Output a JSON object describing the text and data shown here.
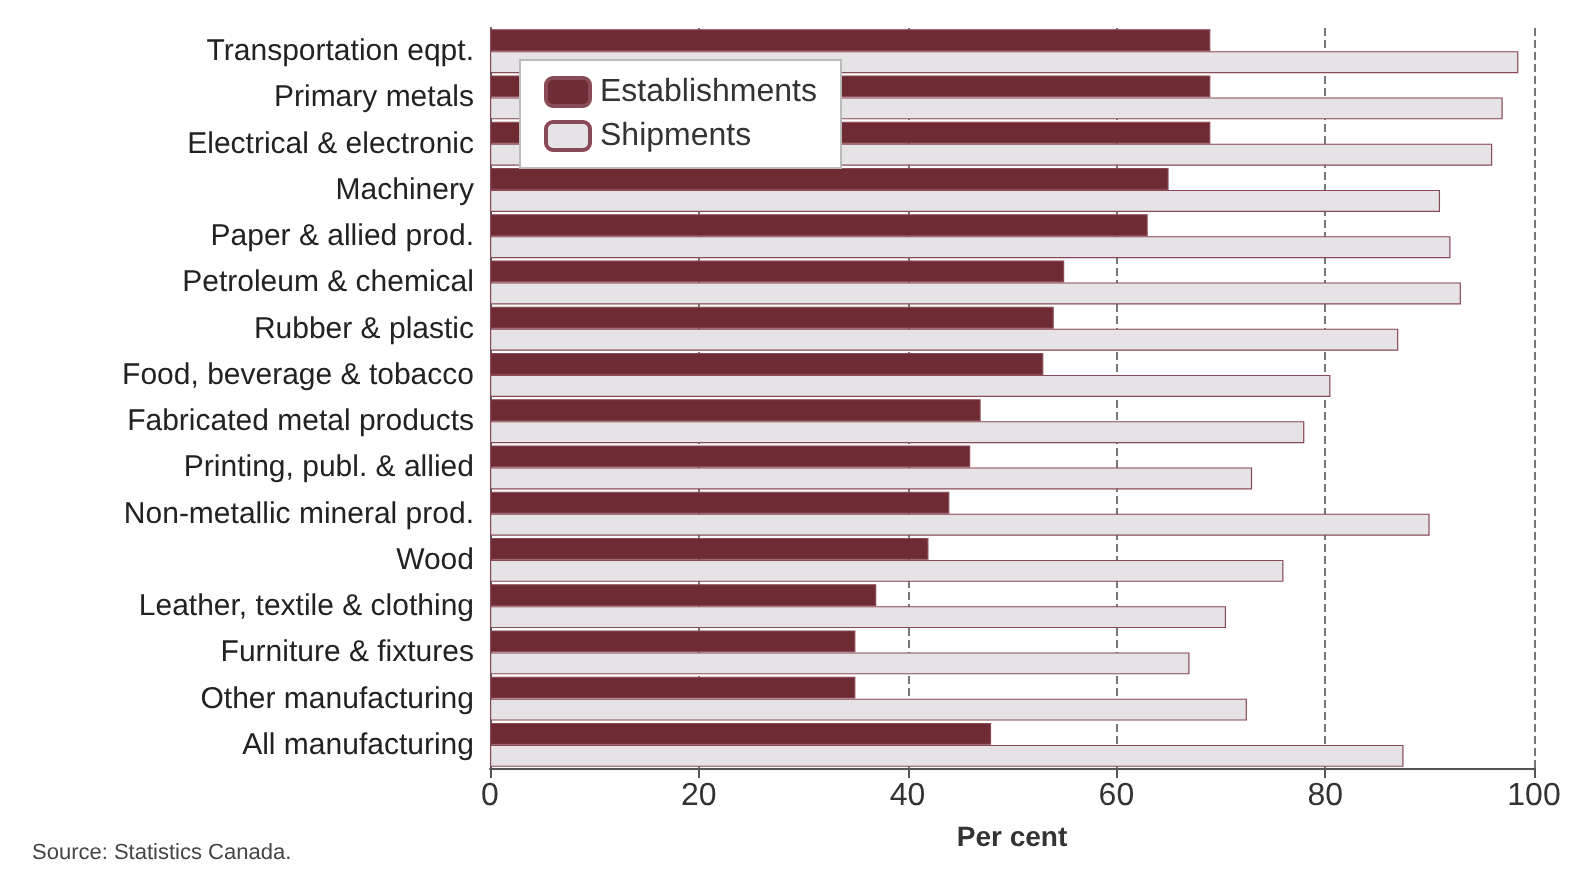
{
  "chart_data": {
    "type": "bar",
    "orientation": "horizontal",
    "xlabel": "Per cent",
    "annotations": [
      "Source: Statistics Canada."
    ],
    "categories": [
      "Transportation eqpt.",
      "Primary metals",
      "Electrical & electronic",
      "Machinery",
      "Paper & allied prod.",
      "Petroleum & chemical",
      "Rubber & plastic",
      "Food, beverage & tobacco",
      "Fabricated metal products",
      "Printing, publ. & allied",
      "Non-metallic mineral prod.",
      "Wood",
      "Leather, textile & clothing",
      "Furniture & fixtures",
      "Other manufacturing",
      "All manufacturing"
    ],
    "series": [
      {
        "name": "Establishments",
        "color": "#6e2b34",
        "values": [
          69,
          69,
          69,
          65,
          63,
          55,
          54,
          53,
          47,
          46,
          44,
          42,
          37,
          35,
          35,
          48
        ]
      },
      {
        "name": "Shipments",
        "color": "#e6e3e6",
        "values": [
          98.5,
          97,
          96,
          91,
          92,
          93,
          87,
          80.5,
          78,
          73,
          90,
          76,
          70.5,
          67,
          72.5,
          87.5
        ]
      }
    ],
    "xlim": [
      0,
      100
    ],
    "xticks": [
      0,
      20,
      40,
      60,
      80,
      100
    ],
    "grid": "x",
    "legend": "top left"
  }
}
